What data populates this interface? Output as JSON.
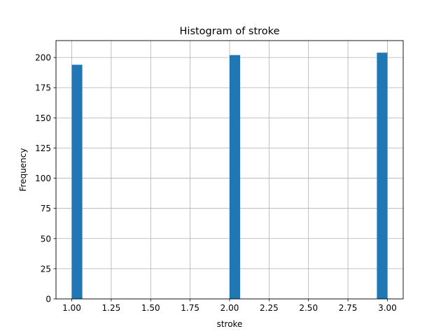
{
  "chart_data": {
    "type": "bar",
    "title": "Histogram of stroke",
    "xlabel": "stroke",
    "ylabel": "Frequency",
    "xlim": [
      0.9,
      3.1
    ],
    "ylim": [
      0,
      214
    ],
    "grid": true,
    "bar_color": "#1f77b4",
    "bins": [
      {
        "x_start": 1.0,
        "x_end": 1.0667,
        "value": 194
      },
      {
        "x_start": 1.9333,
        "x_end": 2.0,
        "value": 0
      },
      {
        "x_start": 2.0,
        "x_end": 2.0667,
        "value": 202
      },
      {
        "x_start": 2.9333,
        "x_end": 3.0,
        "value": 204
      }
    ],
    "x_ticks": [
      1.0,
      1.25,
      1.5,
      1.75,
      2.0,
      2.25,
      2.5,
      2.75,
      3.0
    ],
    "x_tick_labels": [
      "1.00",
      "1.25",
      "1.50",
      "1.75",
      "2.00",
      "2.25",
      "2.50",
      "2.75",
      "3.00"
    ],
    "y_ticks": [
      0,
      25,
      50,
      75,
      100,
      125,
      150,
      175,
      200
    ],
    "y_tick_labels": [
      "0",
      "25",
      "50",
      "75",
      "100",
      "125",
      "150",
      "175",
      "200"
    ]
  }
}
